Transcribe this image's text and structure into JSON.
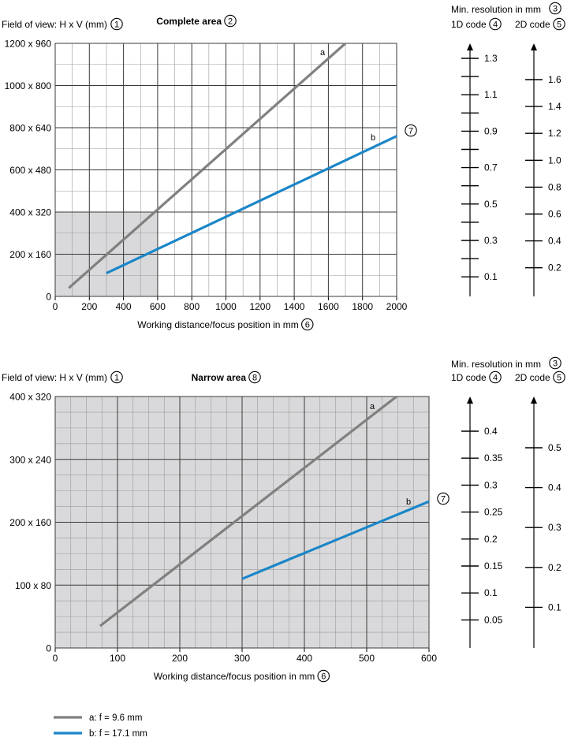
{
  "colors": {
    "line_a": "#808080",
    "line_b": "#1a86c8",
    "shade": "#d9d9db",
    "grid_major": "#3a3a3a",
    "grid_minor": "#9a9a9a"
  },
  "legend": [
    {
      "key": "a",
      "label": "a: f = 9.6 mm"
    },
    {
      "key": "b",
      "label": "b: f = 17.1 mm"
    }
  ],
  "chart_data": [
    {
      "type": "line",
      "title": "Complete area",
      "title_marker": "2",
      "ylabel": "Field of view: H x V (mm)",
      "ylabel_marker": "1",
      "xlabel": "Working distance/focus position in mm",
      "xlabel_marker": "6",
      "callout_marker": "7",
      "xlim": [
        0,
        2000
      ],
      "ylim": [
        0,
        1200
      ],
      "xticks": [
        0,
        200,
        400,
        600,
        800,
        1000,
        1200,
        1400,
        1600,
        1800,
        2000
      ],
      "yticks": [
        {
          "value": 0,
          "label": "0"
        },
        {
          "value": 200,
          "label": "200 x 160"
        },
        {
          "value": 400,
          "label": "400 x 320"
        },
        {
          "value": 600,
          "label": "600 x 480"
        },
        {
          "value": 800,
          "label": "800 x 640"
        },
        {
          "value": 1000,
          "label": "1000 x 800"
        },
        {
          "value": 1200,
          "label": "1200 x 960"
        }
      ],
      "shaded_region": {
        "x": [
          0,
          600
        ],
        "y": [
          0,
          400
        ]
      },
      "grid": true,
      "series": [
        {
          "name": "a",
          "color": "#808080",
          "x": [
            80,
            1700
          ],
          "y": [
            40,
            1200
          ]
        },
        {
          "name": "b",
          "color": "#1a86c8",
          "x": [
            300,
            2000
          ],
          "y": [
            110,
            760
          ]
        }
      ],
      "resolution_scales": {
        "title": "Min. resolution in mm",
        "title_marker": "3",
        "scale_1d": {
          "label": "1D code",
          "marker": "4",
          "ticks": [
            "1.3",
            "",
            "1.1",
            "",
            "0.9",
            "",
            "0.7",
            "",
            "0.5",
            "",
            "0.3",
            "",
            "0.1"
          ]
        },
        "scale_2d": {
          "label": "2D code",
          "marker": "5",
          "ticks": [
            "1.6",
            "1.4",
            "1.2",
            "1.0",
            "0.8",
            "0.6",
            "0.4",
            "0.2"
          ]
        }
      }
    },
    {
      "type": "line",
      "title": "Narrow area",
      "title_marker": "8",
      "ylabel": "Field of view: H x V (mm)",
      "ylabel_marker": "1",
      "xlabel": "Working distance/focus position in mm",
      "xlabel_marker": "6",
      "callout_marker": "7",
      "xlim": [
        0,
        600
      ],
      "ylim": [
        0,
        400
      ],
      "xticks": [
        0,
        100,
        200,
        300,
        400,
        500,
        600
      ],
      "yticks": [
        {
          "value": 0,
          "label": "0"
        },
        {
          "value": 100,
          "label": "100 x 80"
        },
        {
          "value": 200,
          "label": "200 x 160"
        },
        {
          "value": 300,
          "label": "300 x 240"
        },
        {
          "value": 400,
          "label": "400 x 320"
        }
      ],
      "shaded_region": {
        "x": [
          0,
          600
        ],
        "y": [
          0,
          400
        ]
      },
      "grid": true,
      "series": [
        {
          "name": "a",
          "color": "#808080",
          "x": [
            72,
            548
          ],
          "y": [
            35,
            400
          ]
        },
        {
          "name": "b",
          "color": "#1a86c8",
          "x": [
            300,
            600
          ],
          "y": [
            110,
            233
          ]
        }
      ],
      "resolution_scales": {
        "title": "Min. resolution in mm",
        "title_marker": "3",
        "scale_1d": {
          "label": "1D code",
          "marker": "4",
          "ticks": [
            "0.4",
            "0.35",
            "0.3",
            "0.25",
            "0.2",
            "0.15",
            "0.1",
            "0.05"
          ]
        },
        "scale_2d": {
          "label": "2D code",
          "marker": "5",
          "ticks": [
            "0.5",
            "0.4",
            "0.3",
            "0.2",
            "0.1"
          ]
        }
      }
    }
  ]
}
